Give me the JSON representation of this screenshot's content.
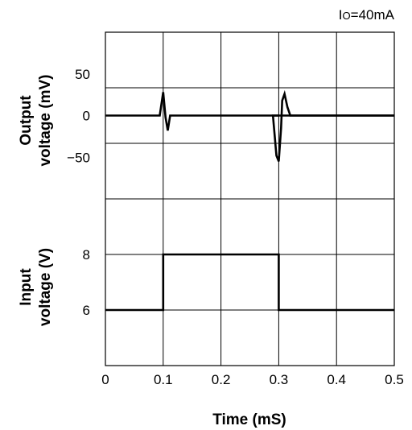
{
  "chart_data": {
    "type": "line",
    "annotation": "IO=40mA",
    "xlabel": "Time (mS)",
    "xlim": [
      0,
      0.5
    ],
    "x_ticks": [
      "0",
      "0.1",
      "0.2",
      "0.3",
      "0.4",
      "0.5"
    ],
    "panels": [
      {
        "ylabel_line1": "Output",
        "ylabel_line2": "voltage (mV)",
        "y_range": [
          -100,
          100
        ],
        "y_ticks": [
          {
            "value": 50,
            "label": "50"
          },
          {
            "value": 0,
            "label": "0"
          },
          {
            "value": -50,
            "label": "−50"
          }
        ],
        "series": {
          "x": [
            0,
            0.094,
            0.1,
            0.104,
            0.108,
            0.112,
            0.5
          ],
          "y": [
            0,
            0,
            28,
            -2,
            -18,
            0,
            0
          ]
        },
        "series_b": {
          "x": [
            0.3,
            0.29,
            0.296,
            0.3,
            0.304,
            0.306,
            0.31,
            0.315,
            0.32,
            0.5
          ],
          "y": [
            0,
            0,
            -48,
            -55,
            -15,
            18,
            26,
            10,
            0,
            0
          ]
        }
      },
      {
        "ylabel_line1": "Input",
        "ylabel_line2": "voltage (V)",
        "y_range": [
          4,
          10
        ],
        "y_ticks": [
          {
            "value": 8,
            "label": "8"
          },
          {
            "value": 6,
            "label": "6"
          }
        ],
        "series": {
          "x": [
            0,
            0.1,
            0.1,
            0.3,
            0.3,
            0.5
          ],
          "y": [
            6,
            6,
            8,
            8,
            6,
            6
          ]
        }
      }
    ]
  }
}
